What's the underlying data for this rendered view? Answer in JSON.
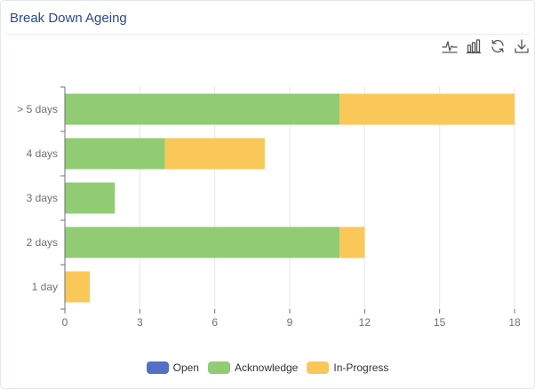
{
  "card": {
    "title": "Break Down Ageing"
  },
  "toolbox": {
    "items": [
      {
        "name": "line-chart-icon",
        "label": "Switch to line chart"
      },
      {
        "name": "bar-chart-icon",
        "label": "Switch to bar chart"
      },
      {
        "name": "refresh-icon",
        "label": "Restore"
      },
      {
        "name": "download-icon",
        "label": "Save as image"
      }
    ]
  },
  "chart_data": {
    "type": "bar",
    "orientation": "horizontal",
    "stacked": true,
    "categories": [
      "1 day",
      "2 days",
      "3 days",
      "4 days",
      "> 5 days"
    ],
    "series": [
      {
        "name": "Open",
        "color": "#5470c6",
        "values": [
          0,
          0,
          0,
          0,
          0
        ]
      },
      {
        "name": "Acknowledge",
        "color": "#91cc75",
        "values": [
          0,
          11,
          2,
          4,
          11
        ]
      },
      {
        "name": "In-Progress",
        "color": "#fac858",
        "values": [
          1,
          1,
          0,
          4,
          7
        ]
      }
    ],
    "xlim": [
      0,
      18
    ],
    "xticks": [
      0,
      3,
      6,
      9,
      12,
      15,
      18
    ],
    "grid": true,
    "legend_position": "bottom-center",
    "title": "Break Down Ageing",
    "xlabel": "",
    "ylabel": ""
  }
}
